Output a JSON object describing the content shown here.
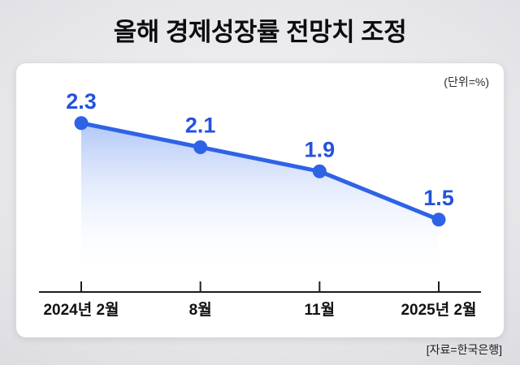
{
  "page": {
    "title": "올해 경제성장률 전망치 조정",
    "unit_label": "(단위=%)",
    "source_label": "[자료=한국은행]"
  },
  "chart_data": {
    "type": "line",
    "title": "올해 경제성장률 전망치 조정",
    "unit": "%",
    "categories": [
      "2024년 2월",
      "8월",
      "11월",
      "2025년 2월"
    ],
    "series": [
      {
        "name": "경제성장률 전망치",
        "values": [
          2.3,
          2.1,
          1.9,
          1.5
        ]
      }
    ],
    "value_labels": [
      "2.3",
      "2.1",
      "1.9",
      "1.5"
    ],
    "ylim": [
      0.9,
      2.5
    ],
    "grid": false,
    "legend": "none",
    "colors": {
      "line": "#2e63e6",
      "point": "#2e63e6",
      "value_label": "#2452dd",
      "area_top": "#9db9f4",
      "axis": "#1c1c1f",
      "tick_label": "#111114"
    }
  }
}
